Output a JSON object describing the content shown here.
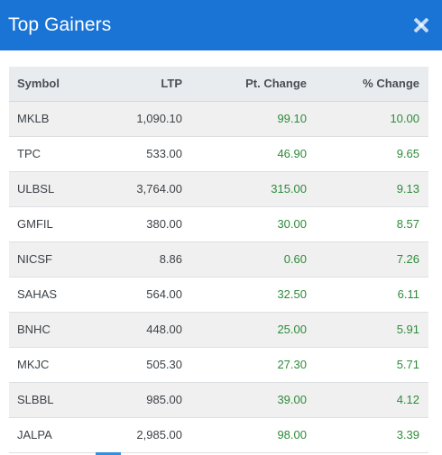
{
  "modal": {
    "title": "Top Gainers",
    "close_icon": "close-icon"
  },
  "colors": {
    "header_bg": "#1a74d6",
    "positive": "#2e8b3a",
    "accent": "#2f8fe0"
  },
  "table": {
    "columns": [
      "Symbol",
      "LTP",
      "Pt. Change",
      "% Change"
    ],
    "rows": [
      {
        "symbol": "MKLB",
        "ltp": "1,090.10",
        "pt_change": "99.10",
        "pct_change": "10.00"
      },
      {
        "symbol": "TPC",
        "ltp": "533.00",
        "pt_change": "46.90",
        "pct_change": "9.65"
      },
      {
        "symbol": "ULBSL",
        "ltp": "3,764.00",
        "pt_change": "315.00",
        "pct_change": "9.13"
      },
      {
        "symbol": "GMFIL",
        "ltp": "380.00",
        "pt_change": "30.00",
        "pct_change": "8.57"
      },
      {
        "symbol": "NICSF",
        "ltp": "8.86",
        "pt_change": "0.60",
        "pct_change": "7.26"
      },
      {
        "symbol": "SAHAS",
        "ltp": "564.00",
        "pt_change": "32.50",
        "pct_change": "6.11"
      },
      {
        "symbol": "BNHC",
        "ltp": "448.00",
        "pt_change": "25.00",
        "pct_change": "5.91"
      },
      {
        "symbol": "MKJC",
        "ltp": "505.30",
        "pt_change": "27.30",
        "pct_change": "5.71"
      },
      {
        "symbol": "SLBBL",
        "ltp": "985.00",
        "pt_change": "39.00",
        "pct_change": "4.12"
      },
      {
        "symbol": "JALPA",
        "ltp": "2,985.00",
        "pt_change": "98.00",
        "pct_change": "3.39"
      }
    ]
  }
}
